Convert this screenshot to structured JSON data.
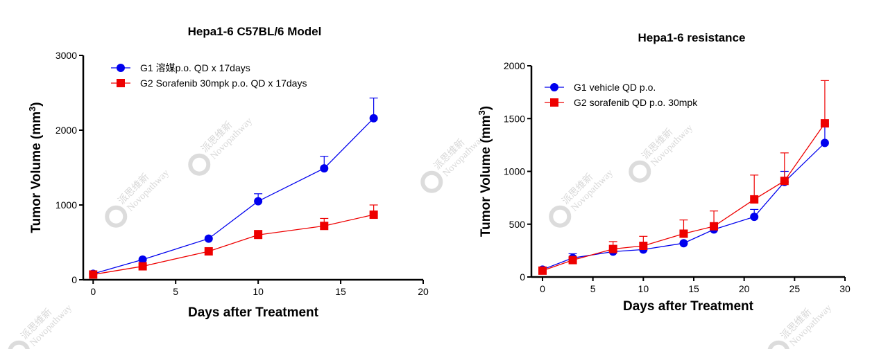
{
  "watermark": {
    "cn": "派思维新",
    "en": "Novopathway"
  },
  "chart_data": [
    {
      "type": "line",
      "title": "Hepa1-6 C57BL/6  Model",
      "xlabel": "Days after Treatment",
      "ylabel": "Tumor Volume (mm",
      "ylabel_sup": "3",
      "ylabel_end": ")",
      "xlim": [
        -0.6,
        20
      ],
      "ylim": [
        0,
        3000
      ],
      "xticks": [
        0,
        5,
        10,
        15,
        20
      ],
      "yticks": [
        0,
        1000,
        2000,
        3000
      ],
      "grid": false,
      "legend": "top-left",
      "series": [
        {
          "name": "G1 溶媒p.o. QD x 17days",
          "color": "#0000ee",
          "marker": "circle",
          "x": [
            0,
            3,
            7,
            10,
            14,
            17
          ],
          "y": [
            80,
            270,
            550,
            1050,
            1490,
            2160
          ],
          "err_upper": [
            80,
            270,
            550,
            1150,
            1650,
            2430
          ]
        },
        {
          "name": "G2 Sorafenib 30mpk p.o. QD x 17days",
          "color": "#ee0000",
          "marker": "square",
          "x": [
            0,
            3,
            7,
            10,
            14,
            17
          ],
          "y": [
            70,
            180,
            380,
            600,
            720,
            870
          ],
          "err_upper": [
            70,
            180,
            380,
            660,
            820,
            1000
          ]
        }
      ]
    },
    {
      "type": "line",
      "title": "Hepa1-6 resistance",
      "xlabel": "Days after Treatment",
      "ylabel": "Tumor Volume (mm",
      "ylabel_sup": "3",
      "ylabel_end": ")",
      "xlim": [
        -1.1,
        30
      ],
      "ylim": [
        0,
        2000
      ],
      "xticks": [
        0,
        5,
        10,
        15,
        20,
        25,
        30
      ],
      "yticks": [
        0,
        500,
        1000,
        1500,
        2000
      ],
      "grid": false,
      "legend": "top-left",
      "series": [
        {
          "name": "G1 vehicle QD p.o.",
          "color": "#0000ee",
          "marker": "circle",
          "x": [
            0,
            3,
            7,
            10,
            14,
            17,
            21,
            24,
            28
          ],
          "y": [
            70,
            180,
            240,
            260,
            320,
            450,
            570,
            900,
            1270
          ],
          "err_upper": [
            70,
            220,
            240,
            260,
            320,
            470,
            640,
            1000,
            1450
          ]
        },
        {
          "name": "G2 sorafenib QD p.o. 30mpk",
          "color": "#ee0000",
          "marker": "square",
          "x": [
            0,
            3,
            7,
            10,
            14,
            17,
            21,
            24,
            28
          ],
          "y": [
            60,
            160,
            265,
            295,
            410,
            480,
            735,
            910,
            1455
          ],
          "err_upper": [
            60,
            160,
            335,
            385,
            540,
            625,
            965,
            1175,
            1860
          ]
        }
      ]
    }
  ]
}
